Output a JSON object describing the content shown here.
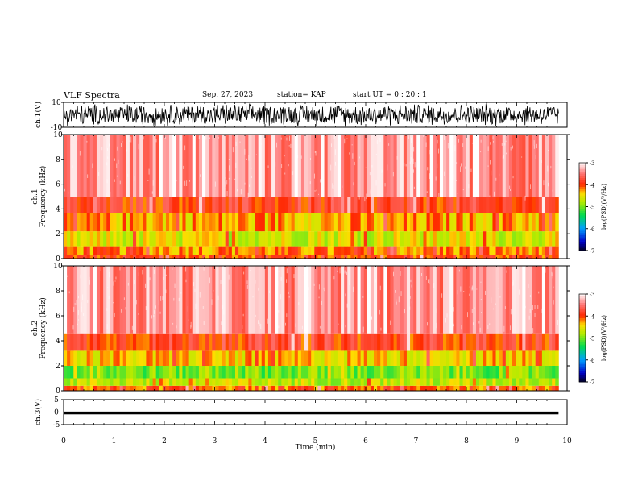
{
  "header": {
    "title": "VLF Spectra",
    "date": "Sep. 27, 2023",
    "station": "station= KAP",
    "start": "start UT =  0 : 20 : 1"
  },
  "colors": {
    "background": "#ffffff",
    "axis": "#000000",
    "trace": "#000000"
  },
  "chart_data": [
    {
      "type": "line",
      "name": "ch1-waveform",
      "ylabel": "ch.1(V)",
      "ylim": [
        -10,
        10
      ],
      "yticks": [
        "10",
        "-10"
      ],
      "xlim": [
        0,
        10
      ],
      "data_end_min": 9.83,
      "note_shape": "dense oscillating waveform spanning roughly -10 to 10 V"
    },
    {
      "type": "heatmap",
      "name": "ch1-spectrogram",
      "ylabel": "ch.1\nFrequency (kHz)",
      "ylim": [
        0,
        10
      ],
      "yticks": [
        "0",
        "2",
        "4",
        "6",
        "8",
        "10"
      ],
      "xlim": [
        0,
        10
      ],
      "data_end_min": 9.83,
      "colorbar": {
        "label": "log(PSD)(V²/Hz)",
        "ticks": [
          "-3",
          "-4",
          "-5",
          "-6",
          "-7"
        ],
        "range": [
          -7,
          -3
        ]
      },
      "band_levels": [
        {
          "f_min": 0.0,
          "f_max": 0.3,
          "log_psd": -4.0
        },
        {
          "f_min": 0.3,
          "f_max": 1.0,
          "log_psd": -4.2
        },
        {
          "f_min": 1.0,
          "f_max": 2.2,
          "log_psd": -4.6
        },
        {
          "f_min": 2.2,
          "f_max": 3.7,
          "log_psd": -4.3
        },
        {
          "f_min": 3.7,
          "f_max": 5.0,
          "log_psd": -3.9
        },
        {
          "f_min": 5.0,
          "f_max": 10.0,
          "log_psd": -3.4
        }
      ]
    },
    {
      "type": "heatmap",
      "name": "ch2-spectrogram",
      "ylabel": "ch.2\nFrequency (kHz)",
      "ylim": [
        0,
        10
      ],
      "yticks": [
        "0",
        "2",
        "4",
        "6",
        "8",
        "10"
      ],
      "xlim": [
        0,
        10
      ],
      "data_end_min": 9.83,
      "colorbar": {
        "label": "log(PSD)(V²/Hz)",
        "ticks": [
          "-3",
          "-4",
          "-5",
          "-6",
          "-7"
        ],
        "range": [
          -7,
          -3
        ]
      },
      "band_levels": [
        {
          "f_min": 0.0,
          "f_max": 0.4,
          "log_psd": -4.1
        },
        {
          "f_min": 0.4,
          "f_max": 1.0,
          "log_psd": -4.7
        },
        {
          "f_min": 1.0,
          "f_max": 2.0,
          "log_psd": -5.0
        },
        {
          "f_min": 2.0,
          "f_max": 3.2,
          "log_psd": -4.4
        },
        {
          "f_min": 3.2,
          "f_max": 4.6,
          "log_psd": -3.9
        },
        {
          "f_min": 4.6,
          "f_max": 10.0,
          "log_psd": -3.4
        }
      ]
    },
    {
      "type": "line",
      "name": "ch3-waveform",
      "ylabel": "ch.3(V)",
      "ylim": [
        -5,
        5
      ],
      "yticks": [
        "5",
        "0",
        "-5"
      ],
      "xlim": [
        0,
        10
      ],
      "xlabel": "Time (min)",
      "xticks": [
        "0",
        "1",
        "2",
        "3",
        "4",
        "5",
        "6",
        "7",
        "8",
        "9",
        "10"
      ],
      "data_end_min": 9.83,
      "trace_level": [
        -0.9,
        0.2
      ]
    }
  ]
}
